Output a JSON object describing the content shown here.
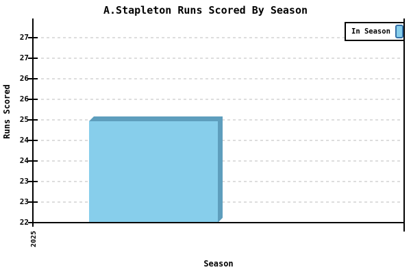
{
  "title": "A.Stapleton Runs Scored By Season",
  "y_axis": {
    "title": "Runs Scored",
    "tick_labels_top_to_bottom": [
      "27",
      "27",
      "26",
      "26",
      "25",
      "24",
      "24",
      "23",
      "23",
      "22"
    ]
  },
  "x_axis": {
    "title": "Season",
    "tick_labels": [
      "2025"
    ]
  },
  "legend": {
    "label": "In Season"
  },
  "colors": {
    "bar_face": "#87CEEB",
    "bar_edge": "#5E9EBD",
    "gridline": "#BBBBBB",
    "axis": "#000000",
    "legend_icon_fill": "#87CEEB",
    "legend_icon_border": "#3470A8"
  },
  "chart_data": {
    "type": "bar",
    "title": "A.Stapleton Runs Scored By Season",
    "xlabel": "Season",
    "ylabel": "Runs Scored",
    "categories": [
      "2025"
    ],
    "series": [
      {
        "name": "In Season",
        "values": [
          25
        ]
      }
    ],
    "ylim": [
      22,
      27.5
    ],
    "y_tick_labels_top_to_bottom": [
      "27",
      "27",
      "26",
      "26",
      "25",
      "24",
      "24",
      "23",
      "23",
      "22"
    ],
    "grid": "horizontal-dashed",
    "legend_position": "top-right",
    "bar_style": "3d-depth-top-right"
  }
}
